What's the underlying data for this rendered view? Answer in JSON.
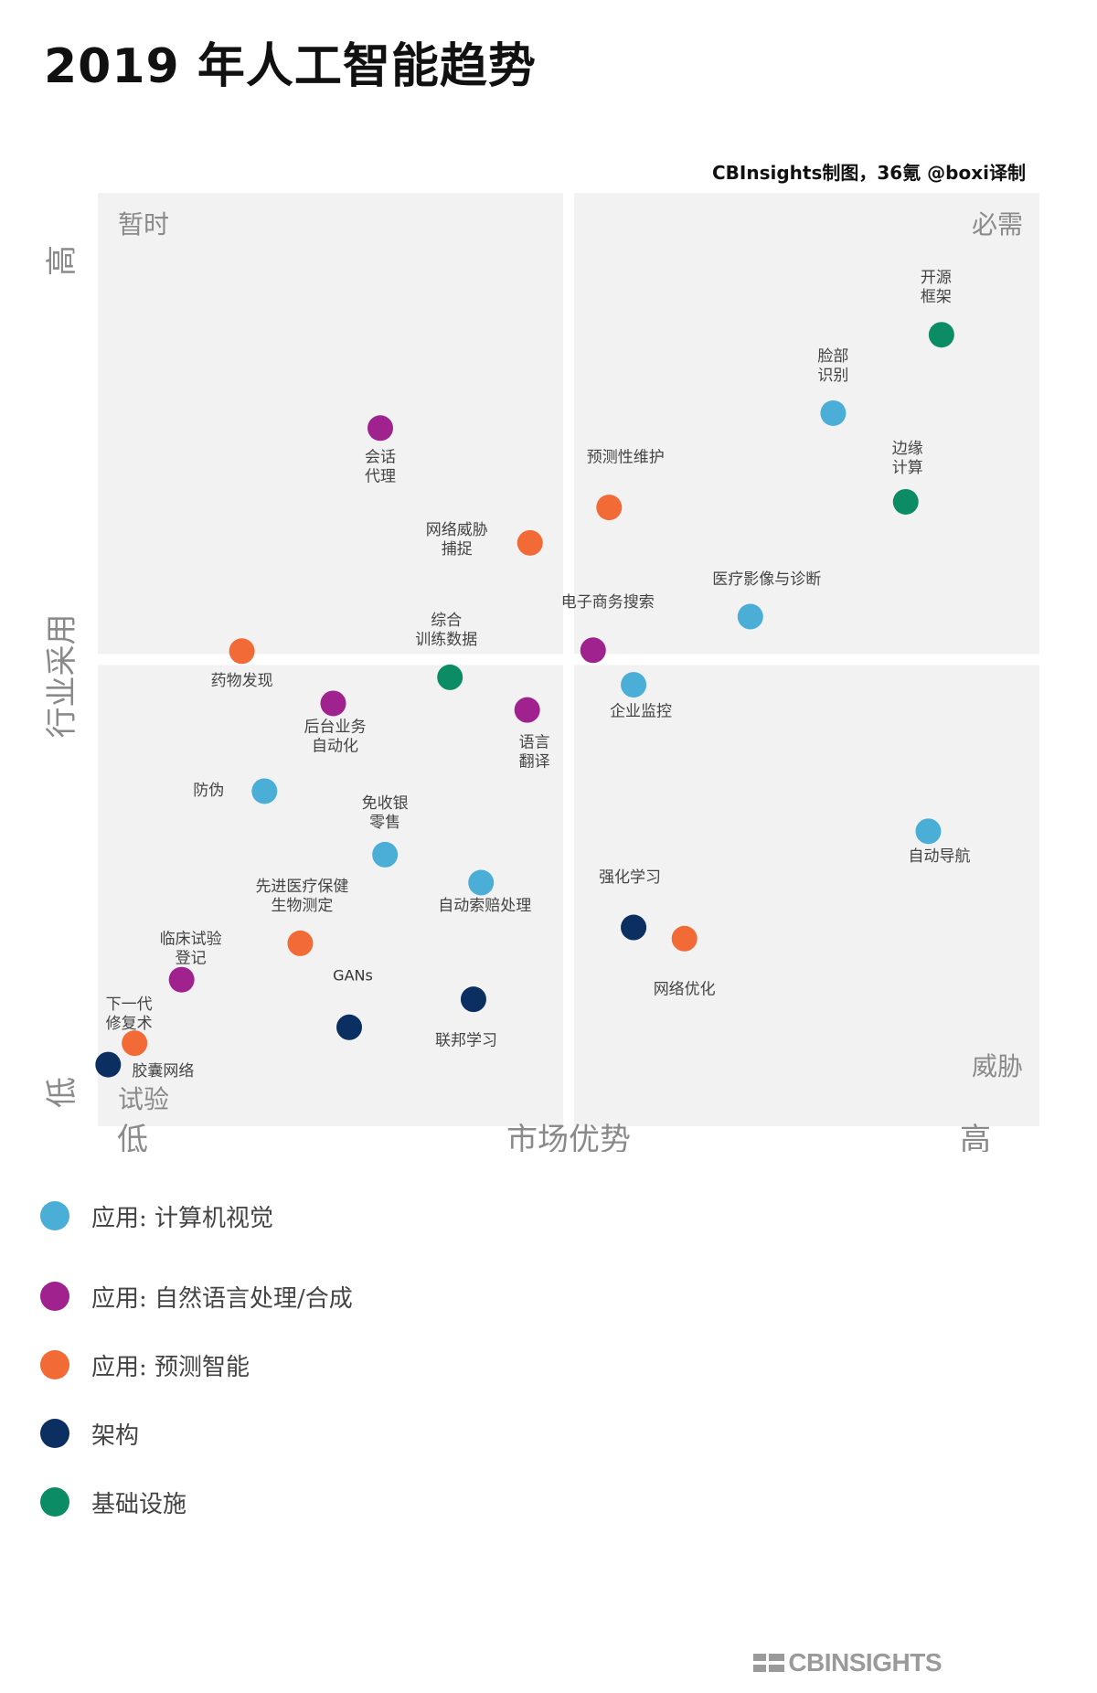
{
  "title": "2019 年人工智能趋势",
  "credit": "CBInsights制图，36氪 @boxi译制",
  "logo_text": "CBINSIGHTS",
  "colors": {
    "cv": "#4aaed6",
    "nlp": "#a0228f",
    "predictive": "#f26a35",
    "architecture": "#0b2f61",
    "infrastructure": "#0c8c64",
    "quadrant_bg": "#f2f2f2"
  },
  "chart_data": {
    "type": "scatter",
    "title": "2019 年人工智能趋势",
    "xlabel": "市场优势",
    "ylabel": "行业采用",
    "x_low": "低",
    "x_high": "高",
    "y_low": "低",
    "y_high": "高",
    "xlim": [
      0,
      100
    ],
    "ylim": [
      0,
      100
    ],
    "quadrants": {
      "top_left": "暂时",
      "top_right": "必需",
      "bottom_left": "试验",
      "bottom_right": "威胁"
    },
    "points": [
      {
        "label": "开源框架",
        "category": "infrastructure",
        "x": 89.6,
        "y": 84.8
      },
      {
        "label": "脸部识别",
        "category": "cv",
        "x": 78.1,
        "y": 76.4
      },
      {
        "label": "边缘计算",
        "category": "infrastructure",
        "x": 85.8,
        "y": 66.9
      },
      {
        "label": "会话代理",
        "category": "nlp",
        "x": 30.0,
        "y": 74.8
      },
      {
        "label": "预测性维护",
        "category": "predictive",
        "x": 54.3,
        "y": 66.3
      },
      {
        "label": "网络威胁捕捉",
        "category": "predictive",
        "x": 45.9,
        "y": 62.5
      },
      {
        "label": "医疗影像与诊断",
        "category": "cv",
        "x": 69.3,
        "y": 54.6
      },
      {
        "label": "电子商务搜索",
        "category": "nlp",
        "x": 52.6,
        "y": 51.0
      },
      {
        "label": "综合训练数据",
        "category": "infrastructure",
        "x": 37.4,
        "y": 48.1
      },
      {
        "label": "药物发现",
        "category": "predictive",
        "x": 15.3,
        "y": 50.9
      },
      {
        "label": "企业监控",
        "category": "cv",
        "x": 56.9,
        "y": 47.3
      },
      {
        "label": "后台业务自动化",
        "category": "nlp",
        "x": 25.0,
        "y": 45.3
      },
      {
        "label": "语言翻译",
        "category": "nlp",
        "x": 45.6,
        "y": 44.6
      },
      {
        "label": "防伪",
        "category": "cv",
        "x": 17.7,
        "y": 35.9
      },
      {
        "label": "自动导航",
        "category": "cv",
        "x": 88.2,
        "y": 31.6
      },
      {
        "label": "免收银零售",
        "category": "cv",
        "x": 30.5,
        "y": 29.1
      },
      {
        "label": "自动索赔处理",
        "category": "cv",
        "x": 40.7,
        "y": 26.1
      },
      {
        "label": "强化学习",
        "category": "architecture",
        "x": 56.9,
        "y": 21.3
      },
      {
        "label": "网络优化",
        "category": "predictive",
        "x": 62.3,
        "y": 20.1
      },
      {
        "label": "先进医疗保健生物测定",
        "category": "predictive",
        "x": 21.5,
        "y": 19.6
      },
      {
        "label": "临床试验登记",
        "category": "nlp",
        "x": 8.9,
        "y": 15.7
      },
      {
        "label": "GANs",
        "category": "architecture",
        "x": 26.7,
        "y": 10.6
      },
      {
        "label": "联邦学习",
        "category": "architecture",
        "x": 39.9,
        "y": 13.6
      },
      {
        "label": "下一代修复术",
        "category": "predictive",
        "x": 3.9,
        "y": 8.9
      },
      {
        "label": "胶囊网络",
        "category": "architecture",
        "x": 1.1,
        "y": 6.6
      }
    ],
    "legend": [
      {
        "category": "cv",
        "label": "应用: 计算机视觉"
      },
      {
        "category": "nlp",
        "label": "应用: 自然语言处理/合成"
      },
      {
        "category": "predictive",
        "label": "应用: 预测智能"
      },
      {
        "category": "architecture",
        "label": "架构"
      },
      {
        "category": "infrastructure",
        "label": "基础设施"
      }
    ],
    "legend_position": "bottom-left",
    "grid": false
  }
}
